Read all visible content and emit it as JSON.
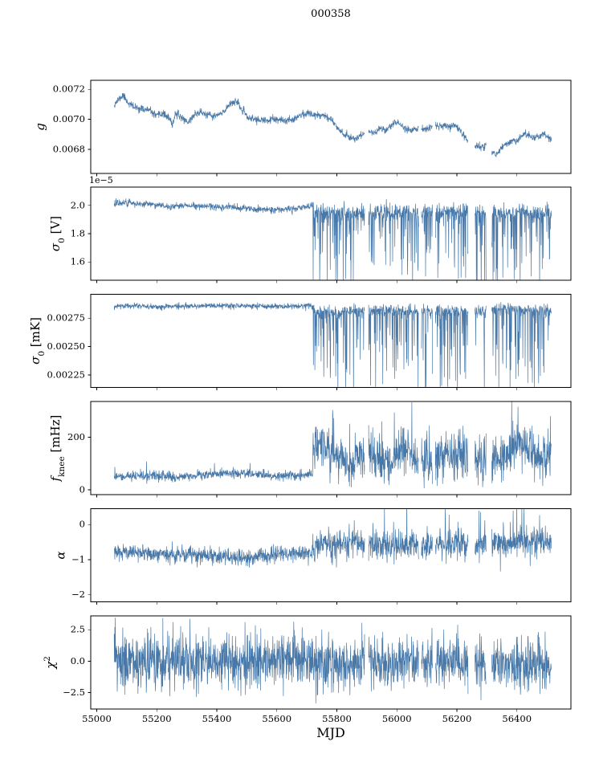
{
  "chart_data": {
    "type": "line",
    "title": "000358",
    "xlabel": "MJD",
    "line_color": "#4878a8",
    "axis_color": "#000000",
    "xlim": [
      54980,
      56580
    ],
    "x_start": 55058,
    "x_end": 56515,
    "dx": 0.8,
    "transition_x": 55720,
    "xticks": {
      "values": [
        55000,
        55200,
        55400,
        55600,
        55800,
        56000,
        56200,
        56400
      ],
      "labels": [
        "55000",
        "55200",
        "55400",
        "55600",
        "55800",
        "56000",
        "56200",
        "56400"
      ]
    },
    "gaps": [
      [
        55893,
        55906
      ],
      [
        56073,
        56082
      ],
      [
        56119,
        56128
      ],
      [
        56238,
        56260
      ],
      [
        56298,
        56316
      ]
    ],
    "panels": [
      {
        "name": "g",
        "ylabel_text": "g",
        "ylabel_parts": [
          {
            "t": "g",
            "style": "i"
          }
        ],
        "ylim": [
          0.00664,
          0.00726
        ],
        "yticks": {
          "values": [
            0.0068,
            0.007,
            0.0072
          ],
          "labels": [
            "0.0068",
            "0.0070",
            "0.0072"
          ]
        },
        "seed": 11,
        "anchors": [
          [
            55058,
            0.0071
          ],
          [
            55072,
            0.00713
          ],
          [
            55088,
            0.00716
          ],
          [
            55105,
            0.00711
          ],
          [
            55125,
            0.00708
          ],
          [
            55150,
            0.00707
          ],
          [
            55175,
            0.00706
          ],
          [
            55200,
            0.00702
          ],
          [
            55220,
            0.00704
          ],
          [
            55240,
            0.00701
          ],
          [
            55252,
            0.00696
          ],
          [
            55262,
            0.00704
          ],
          [
            55285,
            0.00701
          ],
          [
            55305,
            0.00698
          ],
          [
            55325,
            0.00703
          ],
          [
            55345,
            0.00705
          ],
          [
            55365,
            0.00703
          ],
          [
            55390,
            0.00702
          ],
          [
            55420,
            0.00704
          ],
          [
            55445,
            0.00711
          ],
          [
            55465,
            0.00712
          ],
          [
            55485,
            0.00706
          ],
          [
            55505,
            0.00701
          ],
          [
            55530,
            0.007
          ],
          [
            55560,
            0.00699
          ],
          [
            55590,
            0.007
          ],
          [
            55620,
            0.00699
          ],
          [
            55650,
            0.007
          ],
          [
            55680,
            0.00703
          ],
          [
            55705,
            0.00704
          ],
          [
            55730,
            0.00703
          ],
          [
            55760,
            0.00703
          ],
          [
            55785,
            0.00699
          ],
          [
            55805,
            0.00694
          ],
          [
            55825,
            0.0069
          ],
          [
            55845,
            0.00688
          ],
          [
            55865,
            0.00687
          ],
          [
            55885,
            0.0069
          ],
          [
            55905,
            0.00692
          ],
          [
            55925,
            0.00691
          ],
          [
            55945,
            0.00694
          ],
          [
            55965,
            0.00693
          ],
          [
            55985,
            0.00697
          ],
          [
            56005,
            0.00698
          ],
          [
            56025,
            0.00694
          ],
          [
            56045,
            0.00693
          ],
          [
            56070,
            0.00694
          ],
          [
            56095,
            0.00693
          ],
          [
            56120,
            0.00695
          ],
          [
            56145,
            0.00696
          ],
          [
            56170,
            0.00695
          ],
          [
            56195,
            0.00696
          ],
          [
            56215,
            0.00692
          ],
          [
            56235,
            0.00686
          ],
          [
            56255,
            0.00683
          ],
          [
            56275,
            0.00682
          ],
          [
            56295,
            0.00682
          ],
          [
            56315,
            0.00679
          ],
          [
            56330,
            0.00677
          ],
          [
            56345,
            0.0068
          ],
          [
            56365,
            0.00684
          ],
          [
            56385,
            0.00686
          ],
          [
            56400,
            0.00685
          ],
          [
            56420,
            0.0069
          ],
          [
            56445,
            0.00689
          ],
          [
            56465,
            0.00688
          ],
          [
            56485,
            0.0069
          ],
          [
            56505,
            0.00688
          ],
          [
            56515,
            0.00686
          ]
        ],
        "segments": [
          {
            "x0": 55055,
            "x1": 56516,
            "noise": 1.25e-05,
            "spike_prob": 0,
            "spike_sign": 0,
            "spike_max": 0
          }
        ]
      },
      {
        "name": "sigma0_V",
        "ylabel_text": "σ0 [V]",
        "ylabel_parts": [
          {
            "t": "σ",
            "style": "i"
          },
          {
            "t": "0",
            "style": "sub"
          },
          {
            "t": " [V]",
            "style": ""
          }
        ],
        "ylim": [
          1.47,
          2.13
        ],
        "yticks": {
          "values": [
            1.6,
            1.8,
            2.0
          ],
          "labels": [
            "1.6",
            "1.8",
            "2.0"
          ]
        },
        "offset_text": "1e−5",
        "seed": 22,
        "anchors": [
          [
            55058,
            2.01
          ],
          [
            55090,
            2.025
          ],
          [
            55140,
            2.01
          ],
          [
            55190,
            2.005
          ],
          [
            55226,
            2.0
          ],
          [
            55234,
            1.985
          ],
          [
            55280,
            2.0
          ],
          [
            55340,
            1.995
          ],
          [
            55400,
            1.995
          ],
          [
            55460,
            1.985
          ],
          [
            55520,
            1.975
          ],
          [
            55580,
            1.97
          ],
          [
            55640,
            1.975
          ],
          [
            55690,
            1.99
          ],
          [
            55719,
            2.0
          ],
          [
            55722,
            1.96
          ],
          [
            55800,
            1.95
          ],
          [
            55900,
            1.955
          ],
          [
            56000,
            1.96
          ],
          [
            56100,
            1.955
          ],
          [
            56200,
            1.96
          ],
          [
            56300,
            1.945
          ],
          [
            56400,
            1.95
          ],
          [
            56515,
            1.95
          ]
        ],
        "segments": [
          {
            "x0": 55055,
            "x1": 55720,
            "noise": 0.012,
            "spike_prob": 0.02,
            "spike_sign": -1,
            "spike_max": 0.05
          },
          {
            "x0": 55720,
            "x1": 56516,
            "noise": 0.028,
            "spike_prob": 0.3,
            "spike_sign": -1,
            "spike_max": 0.55
          }
        ]
      },
      {
        "name": "sigma0_mK",
        "ylabel_text": "σ0 [mK]",
        "ylabel_parts": [
          {
            "t": "σ",
            "style": "i"
          },
          {
            "t": "0",
            "style": "sub"
          },
          {
            "t": " [mK]",
            "style": ""
          }
        ],
        "ylim": [
          0.00214,
          0.00296
        ],
        "yticks": {
          "values": [
            0.00225,
            0.0025,
            0.00275
          ],
          "labels": [
            "0.00225",
            "0.00250",
            "0.00275"
          ]
        },
        "seed": 33,
        "anchors": [
          [
            55058,
            0.002855
          ],
          [
            55150,
            0.00286
          ],
          [
            55226,
            0.002845
          ],
          [
            55234,
            0.002855
          ],
          [
            55300,
            0.002855
          ],
          [
            55400,
            0.00286
          ],
          [
            55500,
            0.002855
          ],
          [
            55600,
            0.00285
          ],
          [
            55700,
            0.00286
          ],
          [
            55719,
            0.00286
          ],
          [
            55722,
            0.00282
          ],
          [
            55800,
            0.00281
          ],
          [
            55900,
            0.002815
          ],
          [
            56000,
            0.00282
          ],
          [
            56100,
            0.002815
          ],
          [
            56200,
            0.00282
          ],
          [
            56250,
            0.0028
          ],
          [
            56300,
            0.00283
          ],
          [
            56350,
            0.00284
          ],
          [
            56400,
            0.002835
          ],
          [
            56450,
            0.002825
          ],
          [
            56515,
            0.00282
          ]
        ],
        "segments": [
          {
            "x0": 55055,
            "x1": 55720,
            "noise": 1.25e-05,
            "spike_prob": 0.02,
            "spike_sign": -1,
            "spike_max": 5e-05
          },
          {
            "x0": 55720,
            "x1": 56516,
            "noise": 2.6e-05,
            "spike_prob": 0.3,
            "spike_sign": -1,
            "spike_max": 0.00075
          }
        ]
      },
      {
        "name": "fknee",
        "ylabel_text": "fknee [mHz]",
        "ylabel_parts": [
          {
            "t": "f",
            "style": "i"
          },
          {
            "t": "knee",
            "style": "sub"
          },
          {
            "t": " [mHz]",
            "style": ""
          }
        ],
        "ylim": [
          -18,
          335
        ],
        "yticks": {
          "values": [
            0,
            200
          ],
          "labels": [
            "0",
            "200"
          ]
        },
        "seed": 44,
        "clamp_min": 5,
        "clamp_jitter": 10,
        "anchors": [
          [
            55058,
            50
          ],
          [
            55150,
            52
          ],
          [
            55250,
            50
          ],
          [
            55350,
            55
          ],
          [
            55430,
            62
          ],
          [
            55470,
            68
          ],
          [
            55520,
            58
          ],
          [
            55600,
            52
          ],
          [
            55700,
            55
          ],
          [
            55719,
            60
          ],
          [
            55722,
            150
          ],
          [
            55740,
            190
          ],
          [
            55760,
            160
          ],
          [
            55800,
            120
          ],
          [
            55840,
            95
          ],
          [
            55880,
            130
          ],
          [
            55920,
            140
          ],
          [
            55960,
            105
          ],
          [
            56000,
            140
          ],
          [
            56040,
            150
          ],
          [
            56080,
            110
          ],
          [
            56120,
            100
          ],
          [
            56160,
            120
          ],
          [
            56200,
            140
          ],
          [
            56240,
            110
          ],
          [
            56280,
            100
          ],
          [
            56320,
            110
          ],
          [
            56360,
            120
          ],
          [
            56390,
            160
          ],
          [
            56410,
            180
          ],
          [
            56440,
            140
          ],
          [
            56480,
            120
          ],
          [
            56515,
            115
          ]
        ],
        "segments": [
          {
            "x0": 55055,
            "x1": 55720,
            "noise": 9,
            "spike_prob": 0.03,
            "spike_sign": 1,
            "spike_max": 40
          },
          {
            "x0": 55720,
            "x1": 56516,
            "noise": 42,
            "spike_prob": 0.1,
            "spike_sign": 1,
            "spike_max": 140
          }
        ]
      },
      {
        "name": "alpha",
        "ylabel_text": "α",
        "ylabel_parts": [
          {
            "t": "α",
            "style": "i"
          }
        ],
        "ylim": [
          -2.2,
          0.45
        ],
        "yticks": {
          "values": [
            -2,
            -1,
            0
          ],
          "labels": [
            "−2",
            "−1",
            "0"
          ]
        },
        "seed": 55,
        "anchors": [
          [
            55058,
            -0.78
          ],
          [
            55150,
            -0.82
          ],
          [
            55250,
            -0.85
          ],
          [
            55350,
            -0.88
          ],
          [
            55420,
            -0.92
          ],
          [
            55500,
            -0.95
          ],
          [
            55560,
            -0.88
          ],
          [
            55620,
            -0.85
          ],
          [
            55680,
            -0.82
          ],
          [
            55719,
            -0.8
          ],
          [
            55722,
            -0.6
          ],
          [
            55800,
            -0.55
          ],
          [
            55900,
            -0.55
          ],
          [
            56000,
            -0.55
          ],
          [
            56100,
            -0.6
          ],
          [
            56200,
            -0.55
          ],
          [
            56300,
            -0.55
          ],
          [
            56400,
            -0.5
          ],
          [
            56515,
            -0.52
          ]
        ],
        "segments": [
          {
            "x0": 55055,
            "x1": 55720,
            "noise": 0.115,
            "spike_prob": 0.02,
            "spike_sign": -1,
            "spike_max": 0.5
          },
          {
            "x0": 55720,
            "x1": 56516,
            "noise": 0.21,
            "spike_prob": 0.05,
            "spike_sign": 0,
            "spike_max": 1.2
          }
        ]
      },
      {
        "name": "chi2",
        "ylabel_text": "χ2",
        "ylabel_parts": [
          {
            "t": "χ",
            "style": "i"
          },
          {
            "t": "2",
            "style": "sup"
          }
        ],
        "ylim": [
          -3.8,
          3.6
        ],
        "yticks": {
          "values": [
            -2.5,
            0,
            2.5
          ],
          "labels": [
            "−2.5",
            "0.0",
            "2.5"
          ]
        },
        "seed": 66,
        "anchors": [
          [
            55058,
            0.1
          ],
          [
            55400,
            0.05
          ],
          [
            55719,
            0.1
          ],
          [
            55722,
            -0.15
          ],
          [
            56000,
            -0.15
          ],
          [
            56515,
            -0.2
          ]
        ],
        "segments": [
          {
            "x0": 55055,
            "x1": 55720,
            "noise": 1.05,
            "spike_prob": 0,
            "spike_sign": 0,
            "spike_max": 0
          },
          {
            "x0": 55720,
            "x1": 56516,
            "noise": 1.0,
            "spike_prob": 0.02,
            "spike_sign": 0,
            "spike_max": 1.2
          }
        ]
      }
    ]
  }
}
